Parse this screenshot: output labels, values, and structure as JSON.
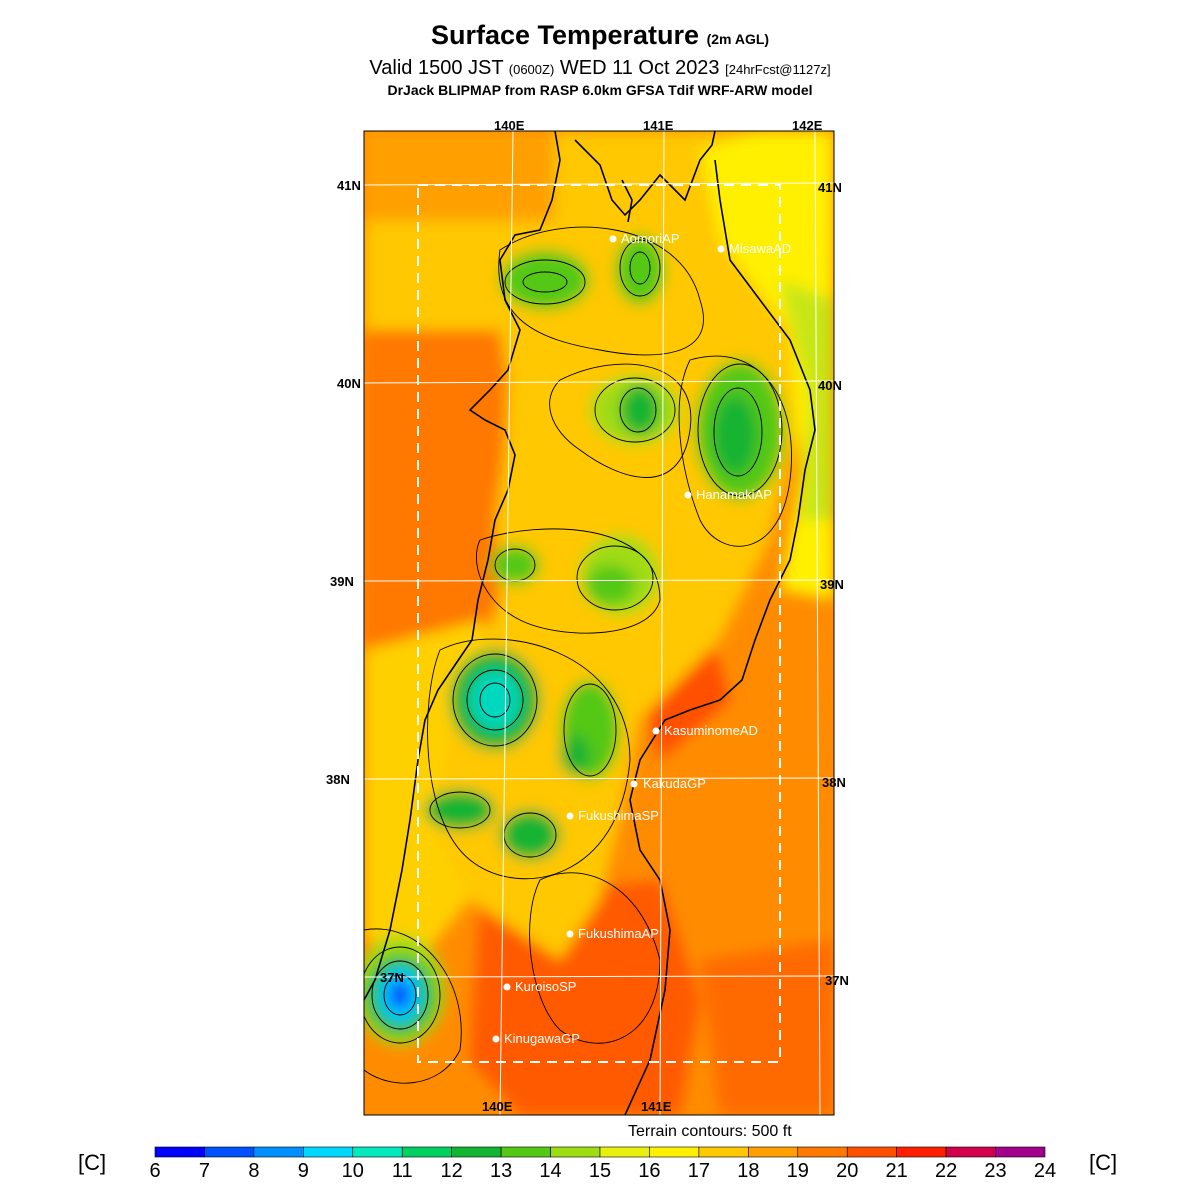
{
  "header": {
    "title": "Surface Temperature",
    "title_suffix": "(2m AGL)",
    "valid_prefix": "Valid 1500 JST",
    "valid_zulu": "(0600Z)",
    "valid_date": "WED 11 Oct 2023",
    "forecast": "[24hrFcst@1127z]",
    "model_line": "DrJack BLIPMAP from RASP 6.0km GFSA Tdif WRF-ARW model"
  },
  "map": {
    "lon_labels_top": [
      "140E",
      "141E",
      "142E"
    ],
    "lon_labels_bottom": [
      "140E",
      "141E"
    ],
    "lat_labels": [
      "41N",
      "40N",
      "39N",
      "38N",
      "37N"
    ],
    "stations": [
      {
        "name": "AomoriAP"
      },
      {
        "name": "MisawaAD"
      },
      {
        "name": "HanamakiAP"
      },
      {
        "name": "KasuminomeAD"
      },
      {
        "name": "KakudaGP"
      },
      {
        "name": "FukushimaSP"
      },
      {
        "name": "FukushimaAP"
      },
      {
        "name": "KuroisoSP"
      },
      {
        "name": "KinugawaGP"
      }
    ],
    "terrain_note": "Terrain contours: 500 ft"
  },
  "colorbar": {
    "unit_left": "[C]",
    "unit_right": "[C]",
    "ticks": [
      "6",
      "7",
      "8",
      "9",
      "10",
      "11",
      "12",
      "13",
      "14",
      "15",
      "16",
      "17",
      "18",
      "19",
      "20",
      "21",
      "22",
      "23",
      "24"
    ],
    "colors": [
      "#0000ff",
      "#0050ff",
      "#0090ff",
      "#00d8ff",
      "#00eabd",
      "#00d060",
      "#14b432",
      "#54c814",
      "#a0dc14",
      "#e6f00a",
      "#fff000",
      "#ffc800",
      "#ffa000",
      "#ff7800",
      "#ff5000",
      "#ff1e00",
      "#d2004b",
      "#a0008c",
      "#8c00a0"
    ]
  }
}
